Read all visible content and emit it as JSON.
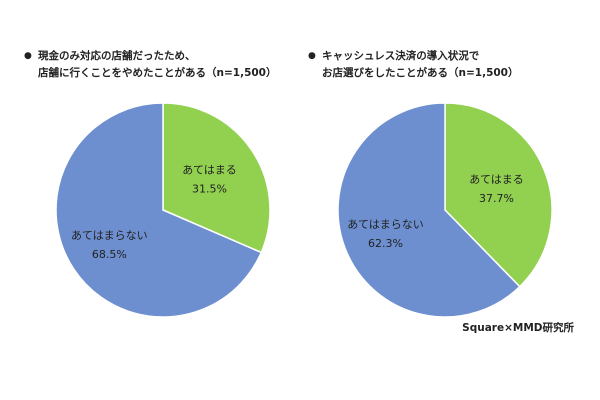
{
  "colors": {
    "yes": "#92D050",
    "no": "#6D8FCF"
  },
  "source": "Square×MMD研究所",
  "chart_data": [
    {
      "type": "pie",
      "title_lines": [
        "現金のみ対応の店舗だったため、",
        "店舗に行くことをやめたことがある（n=1,500）"
      ],
      "slices": [
        {
          "label": "あてはまる",
          "value": 31.5,
          "display": "31.5%"
        },
        {
          "label": "あてはまらない",
          "value": 68.5,
          "display": "68.5%"
        }
      ]
    },
    {
      "type": "pie",
      "title_lines": [
        "キャッシュレス決済の導入状況で",
        "お店選びをしたことがある（n=1,500）"
      ],
      "slices": [
        {
          "label": "あてはまる",
          "value": 37.7,
          "display": "37.7%"
        },
        {
          "label": "あてはまらない",
          "value": 62.3,
          "display": "62.3%"
        }
      ]
    }
  ]
}
